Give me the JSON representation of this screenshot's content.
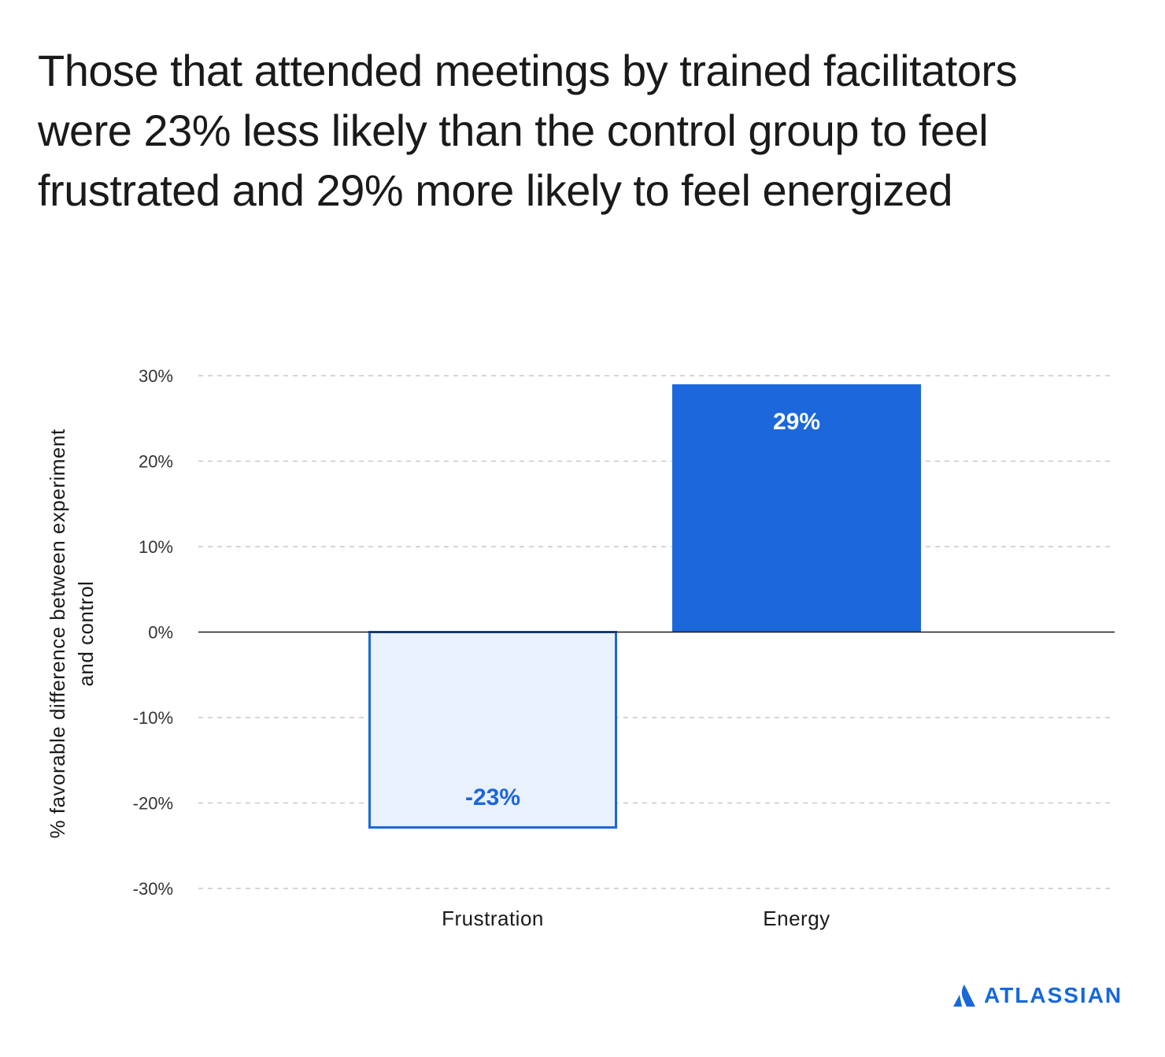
{
  "title": "Those that attended meetings by trained facilitators were 23% less likely than the control group to feel frustrated and 29% more likely to feel energized",
  "brand": {
    "name": "ATLASSIAN",
    "color": "#1868db"
  },
  "chart_data": {
    "type": "bar",
    "categories": [
      "Frustration",
      "Energy"
    ],
    "values": [
      -23,
      29
    ],
    "data_labels": [
      "-23%",
      "29%"
    ],
    "ylabel": "% favorable difference between experiment and control",
    "ylabel_lines": [
      "% favorable difference between experiment",
      "and control"
    ],
    "ylim": [
      -30,
      30
    ],
    "yticks": [
      30,
      20,
      10,
      0,
      -10,
      -20,
      -30
    ],
    "ytick_labels": [
      "30%",
      "20%",
      "10%",
      "0%",
      "-10%",
      "-20%",
      "-30%"
    ],
    "grid": true,
    "colors": {
      "positive_fill": "#1b67db",
      "negative_fill": "#e9f1fd",
      "negative_stroke": "#1b67db",
      "positive_label": "#ffffff",
      "negative_label": "#1b67db"
    }
  }
}
